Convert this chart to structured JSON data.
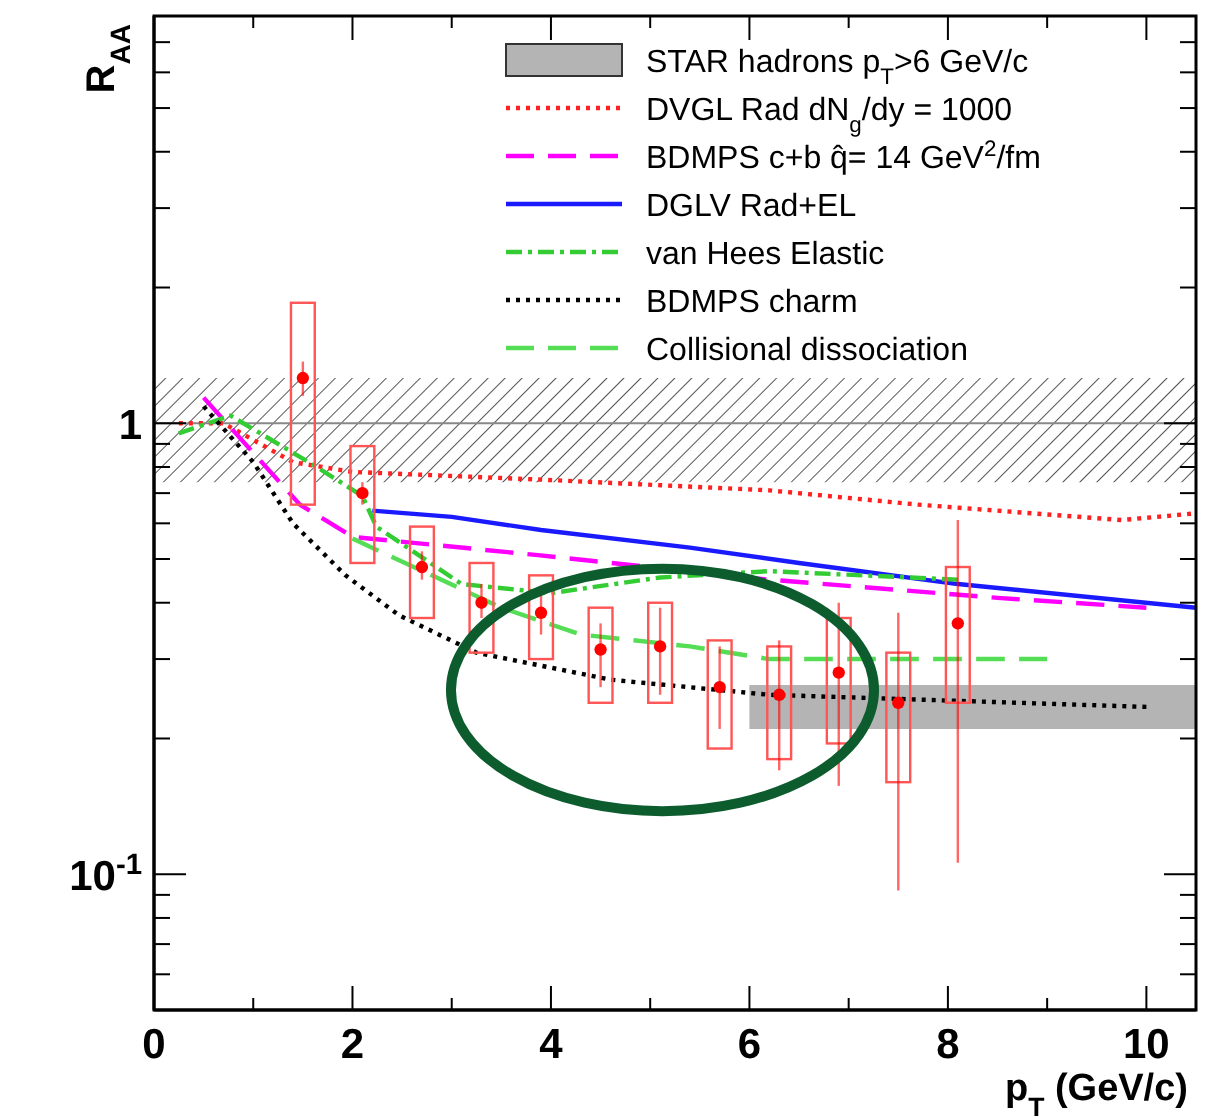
{
  "chart_data": {
    "type": "line",
    "xlabel": "p$_{T}$ (GeV/c)",
    "ylabel": "R$_{AA}$",
    "log": "y",
    "xlim": [
      0,
      10.5
    ],
    "ylim": [
      0.05,
      8
    ],
    "xticks": [
      0,
      {
        "value": 1,
        "label": null
      },
      2,
      {
        "value": 3,
        "label": null
      },
      4,
      {
        "value": 5,
        "label": null
      },
      6,
      {
        "value": 7,
        "label": null
      },
      8,
      {
        "value": 9,
        "label": null
      },
      10
    ],
    "yticks": [
      {
        "value": 0.05,
        "label": null
      },
      {
        "value": 0.06,
        "label": null
      },
      {
        "value": 0.07,
        "label": null
      },
      {
        "value": 0.08,
        "label": null
      },
      {
        "value": 0.09,
        "label": null
      },
      {
        "value": 0.1,
        "label": "10$^{-1}$"
      },
      {
        "value": 0.2,
        "label": null
      },
      {
        "value": 0.3,
        "label": null
      },
      {
        "value": 0.4,
        "label": null
      },
      {
        "value": 0.5,
        "label": null
      },
      {
        "value": 0.6,
        "label": null
      },
      {
        "value": 0.7,
        "label": null
      },
      {
        "value": 0.8,
        "label": null
      },
      {
        "value": 0.9,
        "label": null
      },
      1,
      {
        "value": 2,
        "label": null
      },
      {
        "value": 3,
        "label": null
      },
      {
        "value": 4,
        "label": null
      },
      {
        "value": 5,
        "label": null
      },
      {
        "value": 6,
        "label": null
      },
      {
        "value": 7,
        "label": null
      },
      {
        "value": 8,
        "label": null
      }
    ],
    "legend": "top right",
    "grid": false,
    "ref_lines": [
      {
        "axis": "y",
        "value": 1,
        "color": "#888888"
      }
    ],
    "bands": [
      {
        "axis": "y",
        "from": 0.74,
        "to": 1.26,
        "color": "#555555"
      }
    ],
    "series": [
      {
        "name": "STAR hadrons p$_{T}$>6 GeV/c",
        "color": "#b4b4b4",
        "x": [
          6,
          10.5
        ],
        "values": [
          0.26,
          0.26
        ],
        "lower": [
          0.21,
          0.21
        ],
        "upper": [
          0.26,
          0.26
        ]
      },
      {
        "name": "DVGL Rad dN$_{g}$/dy = 1000",
        "color": "#ff2020",
        "line_style": "dotted",
        "x": [
          0.25,
          0.7,
          1.4,
          2.0,
          3.9,
          6.2,
          7.7,
          8.5,
          9.75,
          10.45
        ],
        "values": [
          1.0,
          1.0,
          0.82,
          0.78,
          0.75,
          0.71,
          0.66,
          0.64,
          0.61,
          0.63
        ]
      },
      {
        "name": "BDMPS c+b q̂= 14 GeV$^{2}$/fm",
        "color": "#ff00ff",
        "line_style": "dashed",
        "x": [
          0.5,
          1.47,
          2.0,
          3.87,
          6.2,
          8.5,
          10.0
        ],
        "values": [
          1.14,
          0.66,
          0.56,
          0.51,
          0.45,
          0.41,
          0.39
        ]
      },
      {
        "name": "DGLV Rad+EL",
        "color": "#1a1aff",
        "line_style": "solid",
        "x": [
          2.2,
          3.0,
          3.9,
          5.4,
          6.5,
          8.1,
          10.5
        ],
        "values": [
          0.64,
          0.62,
          0.58,
          0.53,
          0.49,
          0.44,
          0.39
        ]
      },
      {
        "name": "van Hees Elastic",
        "color": "#33cc33",
        "line_style": "dashdot",
        "x": [
          0.25,
          0.77,
          1.6,
          2.1,
          2.24,
          3.1,
          4.0,
          5.1,
          6.2,
          8.1
        ],
        "values": [
          0.95,
          1.04,
          0.81,
          0.69,
          0.59,
          0.44,
          0.42,
          0.455,
          0.47,
          0.45
        ]
      },
      {
        "name": "BDMPS charm",
        "color": "#000000",
        "line_style": "dotted",
        "x": [
          0.5,
          1.0,
          1.4,
          1.93,
          2.47,
          3.25,
          4.6,
          6.2,
          10.0
        ],
        "values": [
          1.09,
          0.82,
          0.6,
          0.46,
          0.375,
          0.31,
          0.27,
          0.25,
          0.235
        ]
      },
      {
        "name": "Collisional dissociation",
        "color": "#55dd55",
        "line_style": "dashed",
        "x": [
          2.0,
          2.8,
          3.5,
          4.3,
          5.4,
          6.2,
          7.7,
          9.0
        ],
        "values": [
          0.555,
          0.46,
          0.39,
          0.34,
          0.32,
          0.3,
          0.3,
          0.3
        ]
      },
      {
        "type": "bar",
        "color": "#ff5555",
        "x": [
          1.5,
          2.1,
          2.7,
          3.3,
          3.9,
          4.5,
          5.1,
          5.7,
          6.3,
          6.9,
          7.5,
          8.1
        ],
        "base": [
          0.66,
          0.49,
          0.37,
          0.31,
          0.3,
          0.24,
          0.24,
          0.19,
          0.18,
          0.195,
          0.16,
          0.24
        ],
        "values": [
          1.19,
          0.4,
          0.22,
          0.18,
          0.16,
          0.15,
          0.16,
          0.14,
          0.14,
          0.175,
          0.15,
          0.24
        ]
      },
      {
        "type": "scatter",
        "color": "#ff0000",
        "marker": "circle",
        "x": [
          1.5,
          2.1,
          2.7,
          3.3,
          3.9,
          4.5,
          5.1,
          5.7,
          6.3,
          6.9,
          7.5,
          8.1
        ],
        "values": [
          1.26,
          0.7,
          0.48,
          0.4,
          0.38,
          0.315,
          0.32,
          0.26,
          0.25,
          0.28,
          0.24,
          0.36
        ],
        "errors": [
          [
            1.15,
            1.37
          ],
          [
            0.66,
            0.74
          ],
          [
            0.45,
            0.52
          ],
          [
            0.37,
            0.44
          ],
          [
            0.34,
            0.43
          ],
          [
            0.26,
            0.36
          ],
          [
            0.25,
            0.39
          ],
          [
            0.21,
            0.32
          ],
          [
            0.17,
            0.33
          ],
          [
            0.157,
            0.4
          ],
          [
            0.092,
            0.38
          ],
          [
            0.106,
            0.61
          ]
        ]
      }
    ]
  }
}
